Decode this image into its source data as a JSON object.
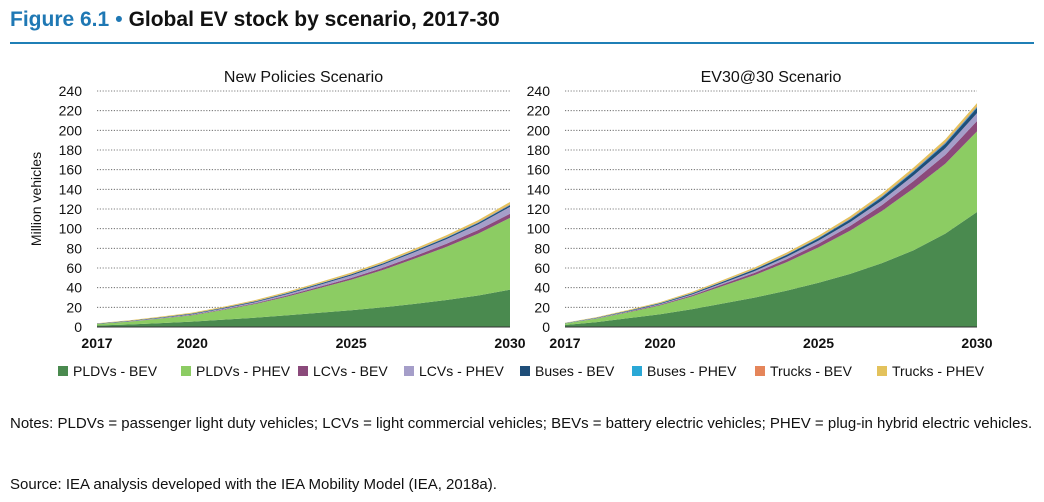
{
  "figure": {
    "number": "Figure 6.1",
    "separator": "•",
    "title": "Global EV stock by scenario, 2017-30"
  },
  "chart_data": [
    {
      "type": "area",
      "stacked": true,
      "title": "New Policies Scenario",
      "ylabel": "Million vehicles",
      "xlabel": "",
      "x": [
        2017,
        2018,
        2019,
        2020,
        2021,
        2022,
        2023,
        2024,
        2025,
        2026,
        2027,
        2028,
        2029,
        2030
      ],
      "xticks": [
        "2017",
        "2020",
        "2025",
        "2030"
      ],
      "ylim": [
        0,
        240
      ],
      "yticks": [
        "0",
        "20",
        "40",
        "60",
        "80",
        "100",
        "120",
        "140",
        "160",
        "180",
        "200",
        "220",
        "240"
      ],
      "grid": true,
      "series": [
        {
          "name": "PLDVs - BEV",
          "color": "#4a8a4f",
          "values": [
            1.5,
            2.6,
            4.0,
            5.5,
            7.5,
            9.5,
            12,
            14.5,
            17,
            20,
            23.5,
            27.5,
            32,
            38
          ]
        },
        {
          "name": "PLDVs - PHEV",
          "color": "#8ccc63",
          "values": [
            1.5,
            2.8,
            4.5,
            6.5,
            10,
            14,
            19,
            25,
            31,
            38,
            46,
            54,
            63,
            73
          ]
        },
        {
          "name": "LCVs - BEV",
          "color": "#8b4a7b",
          "values": [
            0.1,
            0.2,
            0.3,
            0.4,
            0.6,
            0.8,
            1.1,
            1.4,
            1.8,
            2.2,
            2.6,
            3.1,
            3.6,
            4.2
          ]
        },
        {
          "name": "LCVs - PHEV",
          "color": "#a59ec9",
          "values": [
            0.1,
            0.2,
            0.4,
            0.6,
            0.8,
            1.1,
            1.5,
            2.0,
            2.6,
            3.2,
            4.0,
            4.8,
            5.8,
            7.0
          ]
        },
        {
          "name": "Buses - BEV",
          "color": "#1f4e79",
          "values": [
            0.3,
            0.4,
            0.5,
            0.6,
            0.7,
            0.8,
            0.9,
            1.0,
            1.1,
            1.2,
            1.3,
            1.4,
            1.5,
            1.7
          ]
        },
        {
          "name": "Buses - PHEV",
          "color": "#2aa8d6",
          "values": [
            0.05,
            0.05,
            0.1,
            0.1,
            0.1,
            0.15,
            0.15,
            0.2,
            0.2,
            0.25,
            0.3,
            0.3,
            0.35,
            0.4
          ]
        },
        {
          "name": "Trucks - BEV",
          "color": "#e5855a",
          "values": [
            0.01,
            0.02,
            0.03,
            0.05,
            0.07,
            0.1,
            0.13,
            0.17,
            0.22,
            0.27,
            0.33,
            0.4,
            0.48,
            0.55
          ]
        },
        {
          "name": "Trucks - PHEV",
          "color": "#e3c25c",
          "values": [
            0.3,
            0.5,
            0.7,
            0.9,
            1.0,
            1.1,
            1.2,
            1.3,
            1.4,
            1.5,
            1.6,
            1.8,
            2.0,
            2.3
          ]
        }
      ]
    },
    {
      "type": "area",
      "stacked": true,
      "title": "EV30@30 Scenario",
      "xlabel": "",
      "ylabel": "",
      "x": [
        2017,
        2018,
        2019,
        2020,
        2021,
        2022,
        2023,
        2024,
        2025,
        2026,
        2027,
        2028,
        2029,
        2030
      ],
      "xticks": [
        "2017",
        "2020",
        "2025",
        "2030"
      ],
      "ylim": [
        0,
        240
      ],
      "yticks": [
        "0",
        "20",
        "40",
        "60",
        "80",
        "100",
        "120",
        "140",
        "160",
        "180",
        "200",
        "220",
        "240"
      ],
      "grid": true,
      "series": [
        {
          "name": "PLDVs - BEV",
          "color": "#4a8a4f",
          "values": [
            2,
            5,
            9,
            13,
            18,
            24,
            30,
            37,
            45,
            54,
            65,
            78,
            95,
            117
          ]
        },
        {
          "name": "PLDVs - PHEV",
          "color": "#8ccc63",
          "values": [
            1.5,
            3.5,
            6,
            9,
            13,
            18,
            23,
            29,
            36,
            44,
            53,
            63,
            71,
            82
          ]
        },
        {
          "name": "LCVs - BEV",
          "color": "#8b4a7b",
          "values": [
            0.1,
            0.3,
            0.5,
            0.8,
            1.2,
            1.7,
            2.3,
            3.0,
            3.8,
            4.8,
            6.0,
            7.5,
            9.0,
            10.5
          ]
        },
        {
          "name": "LCVs - PHEV",
          "color": "#a59ec9",
          "values": [
            0.1,
            0.2,
            0.4,
            0.6,
            0.9,
            1.3,
            1.8,
            2.4,
            3.0,
            3.8,
            4.7,
            5.7,
            6.8,
            8.0
          ]
        },
        {
          "name": "Buses - BEV",
          "color": "#1f4e79",
          "values": [
            0.3,
            0.4,
            0.6,
            0.8,
            1.0,
            1.3,
            1.6,
            1.9,
            2.3,
            2.8,
            3.3,
            3.9,
            4.6,
            5.3
          ]
        },
        {
          "name": "Buses - PHEV",
          "color": "#2aa8d6",
          "values": [
            0.05,
            0.1,
            0.1,
            0.15,
            0.2,
            0.25,
            0.3,
            0.4,
            0.5,
            0.6,
            0.7,
            0.8,
            0.9,
            1.0
          ]
        },
        {
          "name": "Trucks - BEV",
          "color": "#e5855a",
          "values": [
            0.01,
            0.03,
            0.06,
            0.1,
            0.15,
            0.2,
            0.28,
            0.36,
            0.45,
            0.55,
            0.65,
            0.75,
            0.85,
            0.95
          ]
        },
        {
          "name": "Trucks - PHEV",
          "color": "#e3c25c",
          "values": [
            0.3,
            0.5,
            0.7,
            0.9,
            1.1,
            1.3,
            1.5,
            1.7,
            1.9,
            2.1,
            2.3,
            2.5,
            2.7,
            2.9
          ]
        }
      ]
    }
  ],
  "legend": {
    "placement": "bottom",
    "items": [
      {
        "label": "PLDVs - BEV",
        "color": "#4a8a4f"
      },
      {
        "label": "PLDVs - PHEV",
        "color": "#8ccc63"
      },
      {
        "label": "LCVs - BEV",
        "color": "#8b4a7b"
      },
      {
        "label": "LCVs - PHEV",
        "color": "#a59ec9"
      },
      {
        "label": "Buses - BEV",
        "color": "#1f4e79"
      },
      {
        "label": "Buses - PHEV",
        "color": "#2aa8d6"
      },
      {
        "label": "Trucks - BEV",
        "color": "#e5855a"
      },
      {
        "label": "Trucks - PHEV",
        "color": "#e3c25c"
      }
    ]
  },
  "notes": "Notes: PLDVs = passenger light duty vehicles; LCVs = light commercial vehicles; BEVs = battery electric vehicles; PHEV = plug-in hybrid electric vehicles.",
  "source": "Source: IEA analysis developed with the IEA Mobility Model (IEA, 2018a)."
}
